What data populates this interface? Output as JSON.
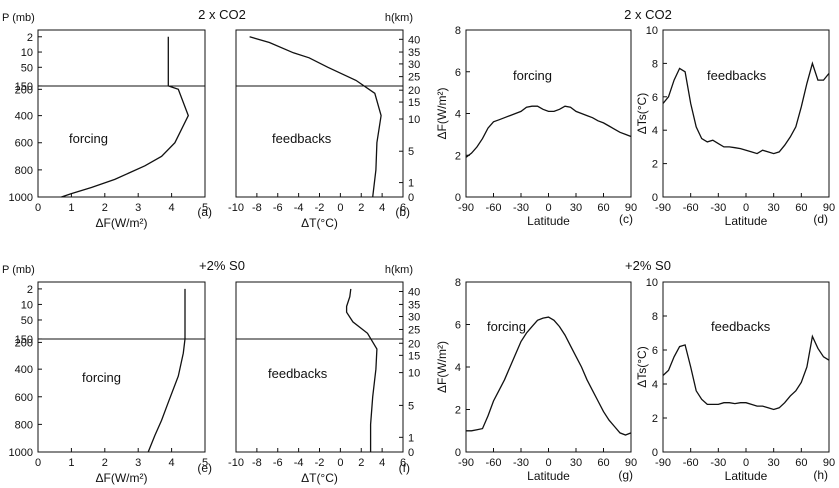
{
  "headers": [
    "2 x CO2",
    "2 x CO2",
    "+2% S0",
    "+2% S0"
  ],
  "chart_data": [
    {
      "id": "a",
      "type": "line",
      "panel_label": "(a)",
      "ylabel": "P (mb)",
      "xlabel": "ΔF(W/m²)",
      "annotation": "forcing",
      "xlim": [
        0,
        5
      ],
      "xticks": [
        0,
        1,
        2,
        3,
        4,
        5
      ],
      "ylim": [
        1000,
        0
      ],
      "yscale": "pressure",
      "yticks": [
        2,
        10,
        50,
        150,
        200,
        400,
        600,
        800,
        1000
      ],
      "ref_line": 150,
      "x": [
        0.7,
        1.0,
        1.6,
        2.3,
        3.2,
        3.7,
        4.1,
        4.5,
        4.2,
        3.9,
        3.9,
        3.9
      ],
      "y": [
        1000,
        975,
        930,
        870,
        770,
        700,
        600,
        400,
        200,
        150,
        50,
        2
      ]
    },
    {
      "id": "b",
      "type": "line",
      "panel_label": "(b)",
      "xlabel": "ΔT(°C)",
      "y2label": "h(km)",
      "annotation": "feedbacks",
      "xlim": [
        -10,
        6
      ],
      "xticks": [
        -10,
        -8,
        -6,
        -4,
        -2,
        0,
        2,
        4,
        6
      ],
      "ylim": [
        1000,
        0
      ],
      "yscale": "pressure",
      "y2ticks": [
        0,
        1,
        5,
        10,
        15,
        20,
        25,
        30,
        35,
        40
      ],
      "ref_line": 150,
      "x": [
        -8.7,
        -6.8,
        -4.5,
        -3.0,
        -1.2,
        1.5,
        3.3,
        3.9,
        3.5,
        3.4,
        3.1
      ],
      "y": [
        2,
        5,
        12,
        25,
        50,
        120,
        230,
        400,
        600,
        800,
        1000
      ]
    },
    {
      "id": "c",
      "type": "line",
      "panel_label": "(c)",
      "xlabel": "Latitude",
      "ylabel": "ΔF(W/m²)",
      "annotation": "forcing",
      "xlim": [
        -90,
        90
      ],
      "xticks": [
        -90,
        -60,
        -30,
        0,
        30,
        60,
        90
      ],
      "ylim": [
        0,
        8
      ],
      "yticks": [
        0,
        2,
        4,
        6,
        8
      ],
      "x": [
        -90,
        -84,
        -78,
        -72,
        -66,
        -60,
        -54,
        -48,
        -42,
        -36,
        -30,
        -24,
        -18,
        -12,
        -6,
        0,
        6,
        12,
        18,
        24,
        30,
        36,
        42,
        48,
        54,
        60,
        66,
        72,
        78,
        84,
        90
      ],
      "y": [
        1.9,
        2.1,
        2.4,
        2.8,
        3.3,
        3.6,
        3.7,
        3.8,
        3.9,
        4.0,
        4.1,
        4.3,
        4.35,
        4.35,
        4.2,
        4.1,
        4.1,
        4.2,
        4.35,
        4.3,
        4.1,
        4.0,
        3.9,
        3.8,
        3.65,
        3.55,
        3.4,
        3.25,
        3.1,
        3.0,
        2.9
      ]
    },
    {
      "id": "d",
      "type": "line",
      "panel_label": "(d)",
      "xlabel": "Latitude",
      "ylabel": "ΔTs(°C)",
      "annotation": "feedbacks",
      "xlim": [
        -90,
        90
      ],
      "xticks": [
        -90,
        -60,
        -30,
        0,
        30,
        60,
        90
      ],
      "ylim": [
        0,
        10
      ],
      "yticks": [
        0,
        2,
        4,
        6,
        8,
        10
      ],
      "x": [
        -90,
        -84,
        -78,
        -72,
        -66,
        -60,
        -54,
        -48,
        -42,
        -36,
        -30,
        -24,
        -18,
        -12,
        -6,
        0,
        6,
        12,
        18,
        24,
        30,
        36,
        42,
        48,
        54,
        60,
        66,
        72,
        78,
        84,
        90
      ],
      "y": [
        5.6,
        6.0,
        7.0,
        7.7,
        7.5,
        5.6,
        4.2,
        3.5,
        3.3,
        3.4,
        3.2,
        3.0,
        3.0,
        2.95,
        2.9,
        2.8,
        2.7,
        2.6,
        2.8,
        2.7,
        2.6,
        2.7,
        3.1,
        3.6,
        4.2,
        5.4,
        6.8,
        8.0,
        7.0,
        7.0,
        7.4
      ]
    },
    {
      "id": "e",
      "type": "line",
      "panel_label": "(e)",
      "ylabel": "P (mb)",
      "xlabel": "ΔF(W/m²)",
      "annotation": "forcing",
      "xlim": [
        0,
        5
      ],
      "xticks": [
        0,
        1,
        2,
        3,
        4,
        5
      ],
      "ylim": [
        1000,
        0
      ],
      "yscale": "pressure",
      "yticks": [
        2,
        10,
        50,
        150,
        200,
        400,
        600,
        800,
        1000
      ],
      "ref_line": 150,
      "x": [
        3.3,
        3.5,
        3.7,
        3.9,
        4.2,
        4.35,
        4.4,
        4.4,
        4.4,
        4.4
      ],
      "y": [
        1000,
        880,
        770,
        640,
        450,
        280,
        150,
        100,
        50,
        2
      ]
    },
    {
      "id": "f",
      "type": "line",
      "panel_label": "(f)",
      "xlabel": "ΔT(°C)",
      "y2label": "h(km)",
      "annotation": "feedbacks",
      "xlim": [
        -10,
        6
      ],
      "xticks": [
        -10,
        -8,
        -6,
        -4,
        -2,
        0,
        2,
        4,
        6
      ],
      "ylim": [
        1000,
        0
      ],
      "yscale": "pressure",
      "y2ticks": [
        0,
        1,
        5,
        10,
        15,
        20,
        25,
        30,
        35,
        40
      ],
      "ref_line": 150,
      "x": [
        1.0,
        0.9,
        0.6,
        0.6,
        1.2,
        2.6,
        3.5,
        3.4,
        3.1,
        2.9,
        2.9
      ],
      "y": [
        2,
        6,
        15,
        30,
        60,
        120,
        250,
        400,
        600,
        800,
        1000
      ]
    },
    {
      "id": "g",
      "type": "line",
      "panel_label": "(g)",
      "xlabel": "Latitude",
      "ylabel": "ΔF(W/m²)",
      "annotation": "forcing",
      "xlim": [
        -90,
        90
      ],
      "xticks": [
        -90,
        -60,
        -30,
        0,
        30,
        60,
        90
      ],
      "ylim": [
        0,
        8
      ],
      "yticks": [
        0,
        2,
        4,
        6,
        8
      ],
      "x": [
        -90,
        -84,
        -78,
        -72,
        -66,
        -60,
        -54,
        -48,
        -42,
        -36,
        -30,
        -24,
        -18,
        -12,
        -6,
        0,
        6,
        12,
        18,
        24,
        30,
        36,
        42,
        48,
        54,
        60,
        66,
        72,
        78,
        84,
        90
      ],
      "y": [
        1.0,
        1.0,
        1.05,
        1.1,
        1.7,
        2.4,
        2.9,
        3.4,
        4.0,
        4.6,
        5.2,
        5.6,
        5.9,
        6.2,
        6.3,
        6.35,
        6.2,
        5.9,
        5.5,
        5.0,
        4.5,
        4.0,
        3.4,
        2.9,
        2.4,
        1.9,
        1.5,
        1.2,
        0.9,
        0.8,
        0.9
      ]
    },
    {
      "id": "h",
      "type": "line",
      "panel_label": "(h)",
      "xlabel": "Latitude",
      "ylabel": "ΔTs(°C)",
      "annotation": "feedbacks",
      "xlim": [
        -90,
        90
      ],
      "xticks": [
        -90,
        -60,
        -30,
        0,
        30,
        60,
        90
      ],
      "ylim": [
        0,
        10
      ],
      "yticks": [
        0,
        2,
        4,
        6,
        8,
        10
      ],
      "x": [
        -90,
        -84,
        -78,
        -72,
        -66,
        -60,
        -54,
        -48,
        -42,
        -36,
        -30,
        -24,
        -18,
        -12,
        -6,
        0,
        6,
        12,
        18,
        24,
        30,
        36,
        42,
        48,
        54,
        60,
        66,
        72,
        78,
        84,
        90
      ],
      "y": [
        4.5,
        4.8,
        5.6,
        6.2,
        6.3,
        5.0,
        3.6,
        3.1,
        2.8,
        2.8,
        2.8,
        2.9,
        2.9,
        2.85,
        2.9,
        2.9,
        2.8,
        2.7,
        2.7,
        2.6,
        2.5,
        2.6,
        2.9,
        3.3,
        3.6,
        4.1,
        5.0,
        6.8,
        6.1,
        5.6,
        5.4
      ]
    }
  ]
}
